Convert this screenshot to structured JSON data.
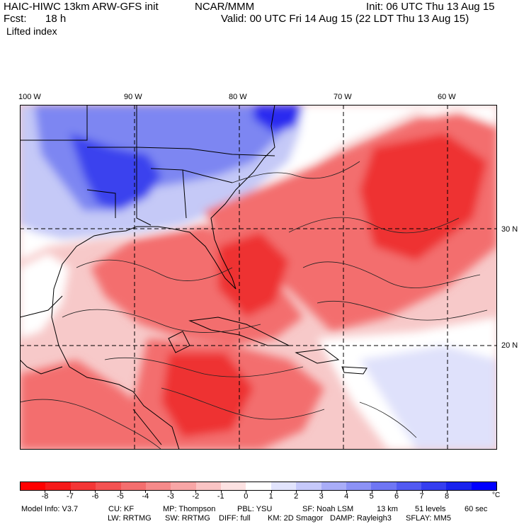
{
  "header": {
    "title_left": "HAIC-HIWC 13km ARW-GFS init",
    "title_org": "NCAR/MMM",
    "init": "Init: 06 UTC Thu 13 Aug 15",
    "fcst_label": "Fcst:",
    "fcst_value": "18 h",
    "valid": "Valid: 00 UTC Fri 14 Aug 15 (22 LDT Thu 13 Aug 15)",
    "field": "Lifted index"
  },
  "map": {
    "lon_labels": [
      "100 W",
      "90 W",
      "80 W",
      "70 W",
      "60 W"
    ],
    "lat_labels": [
      "30 N",
      "20 N"
    ],
    "colors": {
      "strong_blue": "#2b2bf0",
      "mid_blue": "#7d86f2",
      "light_blue": "#c5c9f7",
      "light_red": "#f5b9b9",
      "mid_red": "#f36e6e",
      "strong_red": "#ee3030"
    }
  },
  "colorbar": {
    "colors": [
      "#ff0000",
      "#f61a1a",
      "#f43636",
      "#f45252",
      "#f46e6e",
      "#f68a8a",
      "#f8a6a6",
      "#fac4c4",
      "#fde2e2",
      "#ffffff",
      "#e2e4fd",
      "#c6c9fb",
      "#a9adf8",
      "#8c92f6",
      "#6f76f4",
      "#525af2",
      "#353ef0",
      "#1822ee",
      "#0000ff"
    ],
    "ticks": [
      "-8",
      "-7",
      "-6",
      "-5",
      "-4",
      "-3",
      "-2",
      "-1",
      "0",
      "1",
      "2",
      "3",
      "4",
      "5",
      "6",
      "7",
      "8"
    ],
    "unit": "°C"
  },
  "info": {
    "line1": [
      "Model Info: V3.7",
      "CU: KF",
      "MP: Thompson",
      "PBL: YSU",
      "SF: Noah LSM",
      "13 km",
      "51 levels",
      "60 sec"
    ],
    "line2": [
      "LW: RRTMG",
      "SW: RRTMG",
      "DIFF: full",
      "KM: 2D Smagor",
      "DAMP: Rayleigh3",
      "SFLAY: MM5"
    ]
  }
}
